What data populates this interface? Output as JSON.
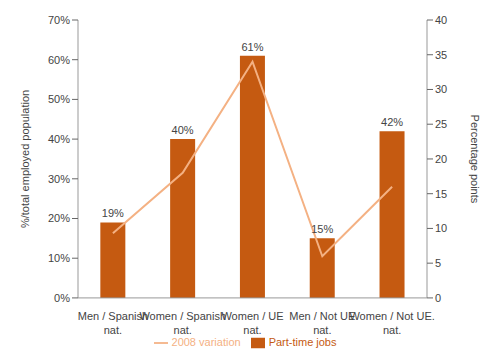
{
  "chart_data": {
    "type": "bar",
    "categories": [
      "Men / Spanish nat.",
      "Women / Spanish nat.",
      "Women / UE nat.",
      "Men / Not UE nat.",
      "Women / Not UE. nat."
    ],
    "series": [
      {
        "name": "Part-time jobs",
        "type": "bar",
        "color": "#c55a11",
        "values": [
          19,
          40,
          61,
          15,
          42
        ],
        "value_labels": [
          "19%",
          "40%",
          "61%",
          "15%",
          "42%"
        ]
      },
      {
        "name": "2008 variation",
        "type": "line",
        "axis": "y2",
        "color": "#f4b183",
        "values": [
          9.3,
          18,
          34,
          6,
          16
        ]
      }
    ],
    "y_label": "%/total employed population",
    "y2_label": "Percentage points",
    "ylim": [
      0,
      70
    ],
    "yticks": [
      {
        "value": 0,
        "label": "0%"
      },
      {
        "value": 10,
        "label": "10%"
      },
      {
        "value": 20,
        "label": "20%"
      },
      {
        "value": 30,
        "label": "30%"
      },
      {
        "value": 40,
        "label": "40%"
      },
      {
        "value": 50,
        "label": "50%"
      },
      {
        "value": 60,
        "label": "60%"
      },
      {
        "value": 70,
        "label": "70%"
      }
    ],
    "y2lim": [
      0,
      40
    ],
    "y2ticks": [
      0,
      5,
      10,
      15,
      20,
      25,
      30,
      35,
      40
    ],
    "data_labels": true,
    "grid": false,
    "legend": "bottom"
  }
}
